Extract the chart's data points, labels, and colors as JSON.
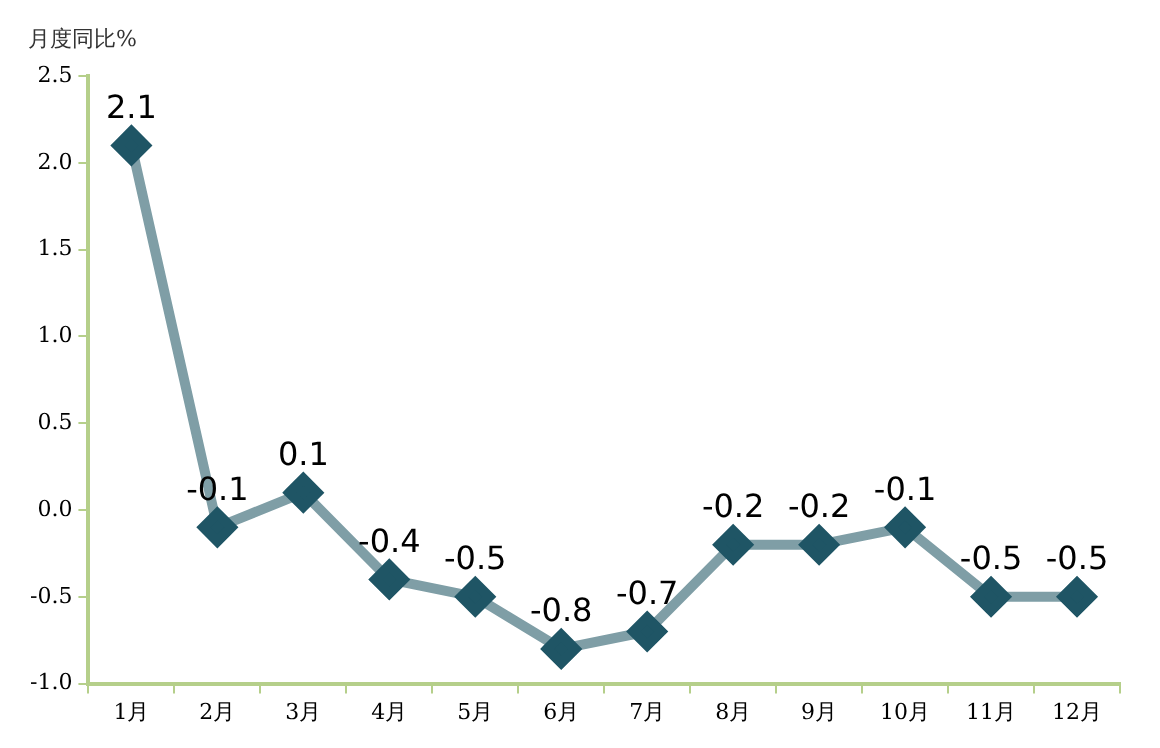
{
  "chart_data": {
    "type": "line",
    "ylabel": "月度同比%",
    "categories": [
      "1月",
      "2月",
      "3月",
      "4月",
      "5月",
      "6月",
      "7月",
      "8月",
      "9月",
      "10月",
      "11月",
      "12月"
    ],
    "series": [
      {
        "color": "#7f9ea6",
        "colors": [
          "#1f5565",
          "#1f5565",
          "#1f5565",
          "#1f5565",
          "#1f5565",
          "#1f5565",
          "#1f5565",
          "#1f5565",
          "#1f5565",
          "#1f5565",
          "#1f5565",
          "#1f5565"
        ],
        "values": [
          2.1,
          -0.1,
          0.1,
          -0.4,
          -0.5,
          -0.8,
          -0.7,
          -0.2,
          -0.2,
          -0.1,
          -0.5,
          -0.5
        ]
      }
    ],
    "ylim": [
      -1.0,
      2.5
    ],
    "yticks": [
      {
        "value": -1.0,
        "label": "-1.0"
      },
      {
        "value": -0.5,
        "label": "-0.5"
      },
      {
        "value": 0,
        "label": "0.0"
      },
      {
        "value": 0.5,
        "label": "0.5"
      },
      {
        "value": 1.0,
        "label": "1.0"
      },
      {
        "value": 1.5,
        "label": "1.5"
      },
      {
        "value": 2.0,
        "label": "2.0"
      },
      {
        "value": 2.5,
        "label": "2.5"
      }
    ],
    "marker": "diamond",
    "data_labels": true,
    "grid": false,
    "legend": false
  }
}
